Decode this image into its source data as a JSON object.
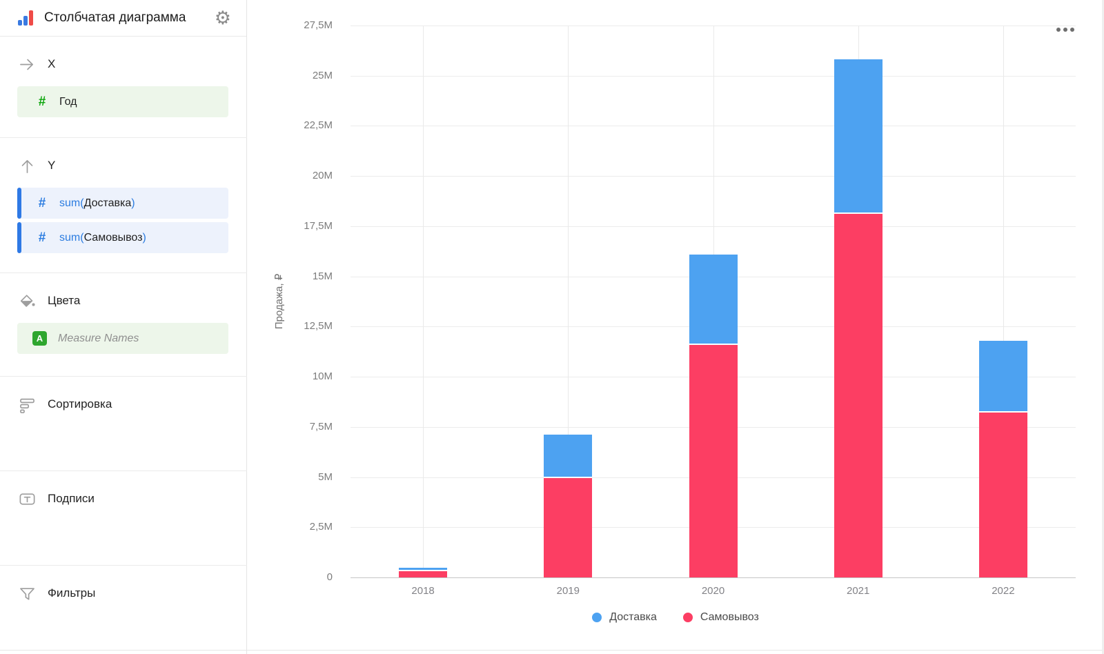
{
  "header": {
    "title": "Столбчатая диаграмма",
    "logo_icon": "bar-chart-icon",
    "settings_icon": "gear-icon"
  },
  "sidebar": {
    "sections": [
      {
        "label": "X",
        "icon": "arrow-right-icon",
        "fields": [
          {
            "label": "Год",
            "type_icon": "number-sign-icon",
            "accent": "green"
          }
        ]
      },
      {
        "label": "Y",
        "icon": "arrow-up-icon",
        "fields": [
          {
            "prefix": "sum(",
            "name": "Доставка",
            "suffix": ")",
            "type_icon": "number-sign-icon",
            "accent": "blue"
          },
          {
            "prefix": "sum(",
            "name": "Самовывоз",
            "suffix": ")",
            "type_icon": "number-sign-icon",
            "accent": "blue"
          }
        ]
      },
      {
        "label": "Цвета",
        "icon": "paint-bucket-icon",
        "fields": [
          {
            "label": "Measure Names",
            "type_icon": "letter-a-badge-icon",
            "italic": true
          }
        ]
      },
      {
        "label": "Сортировка",
        "icon": "sort-icon",
        "fields": []
      },
      {
        "label": "Подписи",
        "icon": "text-label-icon",
        "fields": []
      },
      {
        "label": "Фильтры",
        "icon": "filter-icon",
        "fields": []
      }
    ]
  },
  "toolbar": {
    "more_menu_icon": "three-dots-icon"
  },
  "chart_data": {
    "type": "bar",
    "stacked": true,
    "categories": [
      "2018",
      "2019",
      "2020",
      "2021",
      "2022"
    ],
    "series": [
      {
        "name": "Доставка",
        "color": "#4DA2F1",
        "values": [
          0.17,
          2.15,
          4.5,
          7.7,
          3.6
        ]
      },
      {
        "name": "Самовывоз",
        "color": "#FC3E63",
        "values": [
          0.3,
          4.95,
          11.6,
          18.1,
          8.2
        ]
      }
    ],
    "stack_bottom_to_top": [
      "Самовывоз",
      "Доставка"
    ],
    "totals": [
      0.47,
      7.1,
      16.1,
      25.8,
      11.8
    ],
    "unit": "M ₽",
    "title": "",
    "xlabel": "",
    "ylabel": "Продажа, ₽",
    "ylim": [
      0,
      27.5
    ],
    "y_ticks": [
      "0",
      "2,5M",
      "5M",
      "7,5M",
      "10M",
      "12,5M",
      "15M",
      "17,5M",
      "20M",
      "22,5M",
      "25M",
      "27,5M"
    ],
    "grid": true,
    "legend_position": "bottom",
    "legend": [
      "Доставка",
      "Самовывоз"
    ]
  }
}
